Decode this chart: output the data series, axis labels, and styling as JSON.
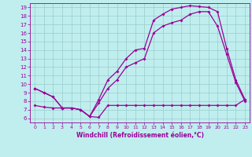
{
  "bg_color": "#c0eeee",
  "grid_color": "#99cccc",
  "line_color": "#990099",
  "xlim": [
    -0.5,
    23.5
  ],
  "ylim": [
    5.5,
    19.5
  ],
  "xticks": [
    0,
    1,
    2,
    3,
    4,
    5,
    6,
    7,
    8,
    9,
    10,
    11,
    12,
    13,
    14,
    15,
    16,
    17,
    18,
    19,
    20,
    21,
    22,
    23
  ],
  "yticks": [
    6,
    7,
    8,
    9,
    10,
    11,
    12,
    13,
    14,
    15,
    16,
    17,
    18,
    19
  ],
  "xlabel": "Windchill (Refroidissement éolien,°C)",
  "upper_x": [
    0,
    1,
    2,
    3,
    4,
    5,
    6,
    7,
    8,
    9,
    10,
    11,
    12,
    13,
    14,
    15,
    16,
    17,
    18,
    19,
    20,
    21,
    22,
    23
  ],
  "upper_y": [
    9.5,
    9.0,
    8.5,
    7.2,
    7.2,
    7.0,
    6.2,
    8.2,
    10.5,
    11.5,
    13.0,
    14.0,
    14.2,
    17.5,
    18.2,
    18.8,
    19.0,
    19.2,
    19.1,
    19.0,
    18.5,
    14.2,
    10.5,
    8.2
  ],
  "mid_x": [
    0,
    1,
    2,
    3,
    4,
    5,
    6,
    7,
    8,
    9,
    10,
    11,
    12,
    13,
    14,
    15,
    16,
    17,
    18,
    19,
    20,
    21,
    22,
    23
  ],
  "mid_y": [
    9.5,
    9.0,
    8.5,
    7.2,
    7.2,
    7.0,
    6.2,
    7.8,
    9.5,
    10.5,
    12.0,
    12.5,
    13.0,
    16.0,
    16.8,
    17.2,
    17.5,
    18.2,
    18.5,
    18.5,
    16.8,
    13.5,
    10.2,
    8.0
  ],
  "bot_x": [
    0,
    1,
    2,
    3,
    4,
    5,
    6,
    7,
    8,
    9,
    10,
    11,
    12,
    13,
    14,
    15,
    16,
    17,
    18,
    19,
    20,
    21,
    22,
    23
  ],
  "bot_y": [
    7.5,
    7.3,
    7.2,
    7.2,
    7.2,
    7.0,
    6.2,
    6.1,
    7.5,
    7.5,
    7.5,
    7.5,
    7.5,
    7.5,
    7.5,
    7.5,
    7.5,
    7.5,
    7.5,
    7.5,
    7.5,
    7.5,
    7.5,
    8.2
  ],
  "lw": 0.9,
  "ms": 2.0,
  "tick_fs": 4.5,
  "xlabel_fs": 5.5
}
